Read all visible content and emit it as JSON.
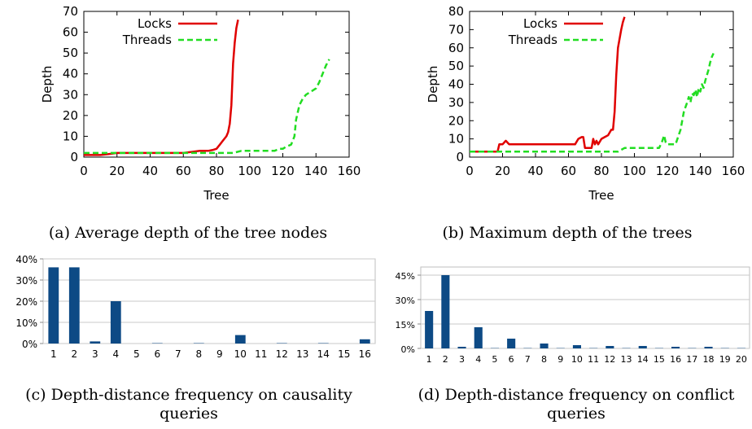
{
  "chart_data": [
    {
      "id": "a",
      "type": "line",
      "caption": "(a) Average depth of the tree nodes",
      "xlabel": "Tree",
      "ylabel": "Depth",
      "xlim": [
        0,
        160
      ],
      "ylim": [
        0,
        70
      ],
      "xticks": [
        0,
        20,
        40,
        60,
        80,
        100,
        120,
        140,
        160
      ],
      "yticks": [
        0,
        10,
        20,
        30,
        40,
        50,
        60,
        70
      ],
      "legend": "top-left",
      "series": [
        {
          "name": "Locks",
          "color": "#e00000",
          "style": "solid",
          "x": [
            0,
            5,
            10,
            15,
            20,
            30,
            40,
            50,
            60,
            65,
            70,
            75,
            78,
            80,
            82,
            84,
            86,
            87,
            88,
            89,
            90,
            91,
            92,
            93
          ],
          "y": [
            1,
            1,
            1,
            1.5,
            2,
            2,
            2,
            2,
            2,
            2.5,
            3,
            3,
            3.5,
            4,
            6,
            8,
            10,
            12,
            16,
            25,
            45,
            55,
            62,
            66
          ]
        },
        {
          "name": "Threads",
          "color": "#22dd22",
          "style": "dashed",
          "x": [
            0,
            20,
            40,
            60,
            80,
            90,
            95,
            100,
            110,
            115,
            118,
            120,
            122,
            125,
            127,
            128,
            130,
            132,
            134,
            136,
            138,
            140,
            142,
            144,
            146,
            148
          ],
          "y": [
            2,
            2,
            2,
            2,
            2,
            2,
            3,
            3,
            3,
            3,
            4,
            4,
            5,
            6,
            10,
            18,
            25,
            28,
            30,
            31,
            32,
            33,
            36,
            40,
            44,
            47
          ]
        }
      ]
    },
    {
      "id": "b",
      "type": "line",
      "caption": "(b) Maximum depth of the trees",
      "xlabel": "Tree",
      "ylabel": "Depth",
      "xlim": [
        0,
        160
      ],
      "ylim": [
        0,
        80
      ],
      "xticks": [
        0,
        20,
        40,
        60,
        80,
        100,
        120,
        140,
        160
      ],
      "yticks": [
        0,
        10,
        20,
        30,
        40,
        50,
        60,
        70,
        80
      ],
      "legend": "top-left",
      "series": [
        {
          "name": "Locks",
          "color": "#e00000",
          "style": "solid",
          "x": [
            0,
            10,
            17,
            18,
            20,
            22,
            24,
            26,
            40,
            50,
            60,
            64,
            66,
            68,
            69,
            70,
            72,
            74,
            75,
            76,
            77,
            78,
            80,
            82,
            84,
            86,
            87,
            88,
            89,
            90,
            91,
            92,
            93,
            94
          ],
          "y": [
            3,
            3,
            3,
            7,
            7,
            9,
            7,
            7,
            7,
            7,
            7,
            7,
            10,
            11,
            11,
            5,
            5,
            5,
            10,
            7,
            9,
            7,
            10,
            11,
            12,
            15,
            15,
            25,
            45,
            60,
            65,
            70,
            74,
            77
          ]
        },
        {
          "name": "Threads",
          "color": "#22dd22",
          "style": "dashed",
          "x": [
            0,
            20,
            40,
            60,
            80,
            90,
            94,
            100,
            110,
            115,
            117,
            118,
            119,
            120,
            125,
            128,
            130,
            132,
            133,
            134,
            135,
            136,
            137,
            138,
            139,
            140,
            141,
            142,
            143,
            144,
            145,
            146,
            147,
            148
          ],
          "y": [
            3,
            3,
            3,
            3,
            3,
            3,
            5,
            5,
            5,
            5,
            9,
            12,
            8,
            7,
            7,
            15,
            25,
            30,
            33,
            30,
            35,
            34,
            37,
            33,
            38,
            36,
            40,
            38,
            42,
            45,
            48,
            52,
            55,
            57
          ]
        }
      ]
    },
    {
      "id": "c",
      "type": "bar",
      "caption_lines": [
        "(c) Depth-distance frequency on causality",
        "queries"
      ],
      "categories": [
        "1",
        "2",
        "3",
        "4",
        "5",
        "6",
        "7",
        "8",
        "9",
        "10",
        "11",
        "12",
        "13",
        "14",
        "15",
        "16"
      ],
      "values": [
        36,
        36,
        1,
        20,
        0,
        0.2,
        0,
        0.2,
        0,
        4,
        0,
        0.2,
        0,
        0.2,
        0,
        2
      ],
      "ylim": [
        0,
        40
      ],
      "yticks": [
        "0%",
        "10%",
        "20%",
        "30%",
        "40%"
      ],
      "ytick_values": [
        0,
        10,
        20,
        30,
        40
      ],
      "bar_color": "#0d4a85"
    },
    {
      "id": "d",
      "type": "bar",
      "caption_lines": [
        "(d) Depth-distance frequency on conflict",
        "queries"
      ],
      "categories": [
        "1",
        "2",
        "3",
        "4",
        "5",
        "6",
        "7",
        "8",
        "9",
        "10",
        "11",
        "12",
        "13",
        "14",
        "15",
        "16",
        "17",
        "18",
        "19",
        "20"
      ],
      "values": [
        23,
        45,
        1,
        13,
        0.2,
        6,
        0.2,
        3,
        0.2,
        2,
        0.2,
        1.5,
        0.2,
        1.5,
        0.2,
        1,
        0.2,
        1,
        0.2,
        0.2
      ],
      "ylim": [
        0,
        50
      ],
      "yticks": [
        "0%",
        "15%",
        "30%",
        "45%"
      ],
      "ytick_values": [
        0,
        15,
        30,
        45
      ],
      "bar_color": "#0d4a85"
    }
  ]
}
